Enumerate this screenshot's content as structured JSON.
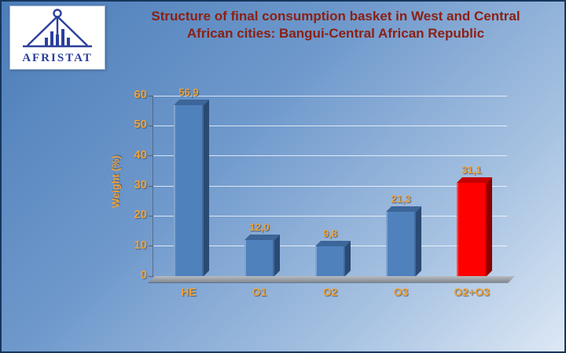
{
  "slide": {
    "title": "Structure of final consumption basket in West and Central African cities: Bangui-Central African Republic"
  },
  "logo": {
    "text": "AFRISTAT"
  },
  "colors": {
    "title": "#8b2014",
    "axis_text": "#eda23c",
    "bar_blue": "#4f81bd",
    "bar_red": "#fe0000"
  },
  "chart_data": {
    "type": "bar",
    "title": "",
    "categories": [
      "HE",
      "O1",
      "O2",
      "O3",
      "O2+O3"
    ],
    "values": [
      56.9,
      12.0,
      9.8,
      21.3,
      31.1
    ],
    "value_labels": [
      "56,9",
      "12,0",
      "9,8",
      "21,3",
      "31,1"
    ],
    "xlabel": "",
    "ylabel": "Weight (%)",
    "ylim": [
      0,
      60
    ],
    "yticks": [
      0,
      10,
      20,
      30,
      40,
      50,
      60
    ],
    "grid": true,
    "legend": "none",
    "bar_colors": [
      "#4f81bd",
      "#4f81bd",
      "#4f81bd",
      "#4f81bd",
      "#fe0000"
    ],
    "bar_top_colors": [
      "#3c6699",
      "#3c6699",
      "#3c6699",
      "#3c6699",
      "#c40000"
    ],
    "bar_side_colors": [
      "#2a4a73",
      "#2a4a73",
      "#2a4a73",
      "#2a4a73",
      "#8a0000"
    ],
    "label_color": "#eda23c"
  }
}
